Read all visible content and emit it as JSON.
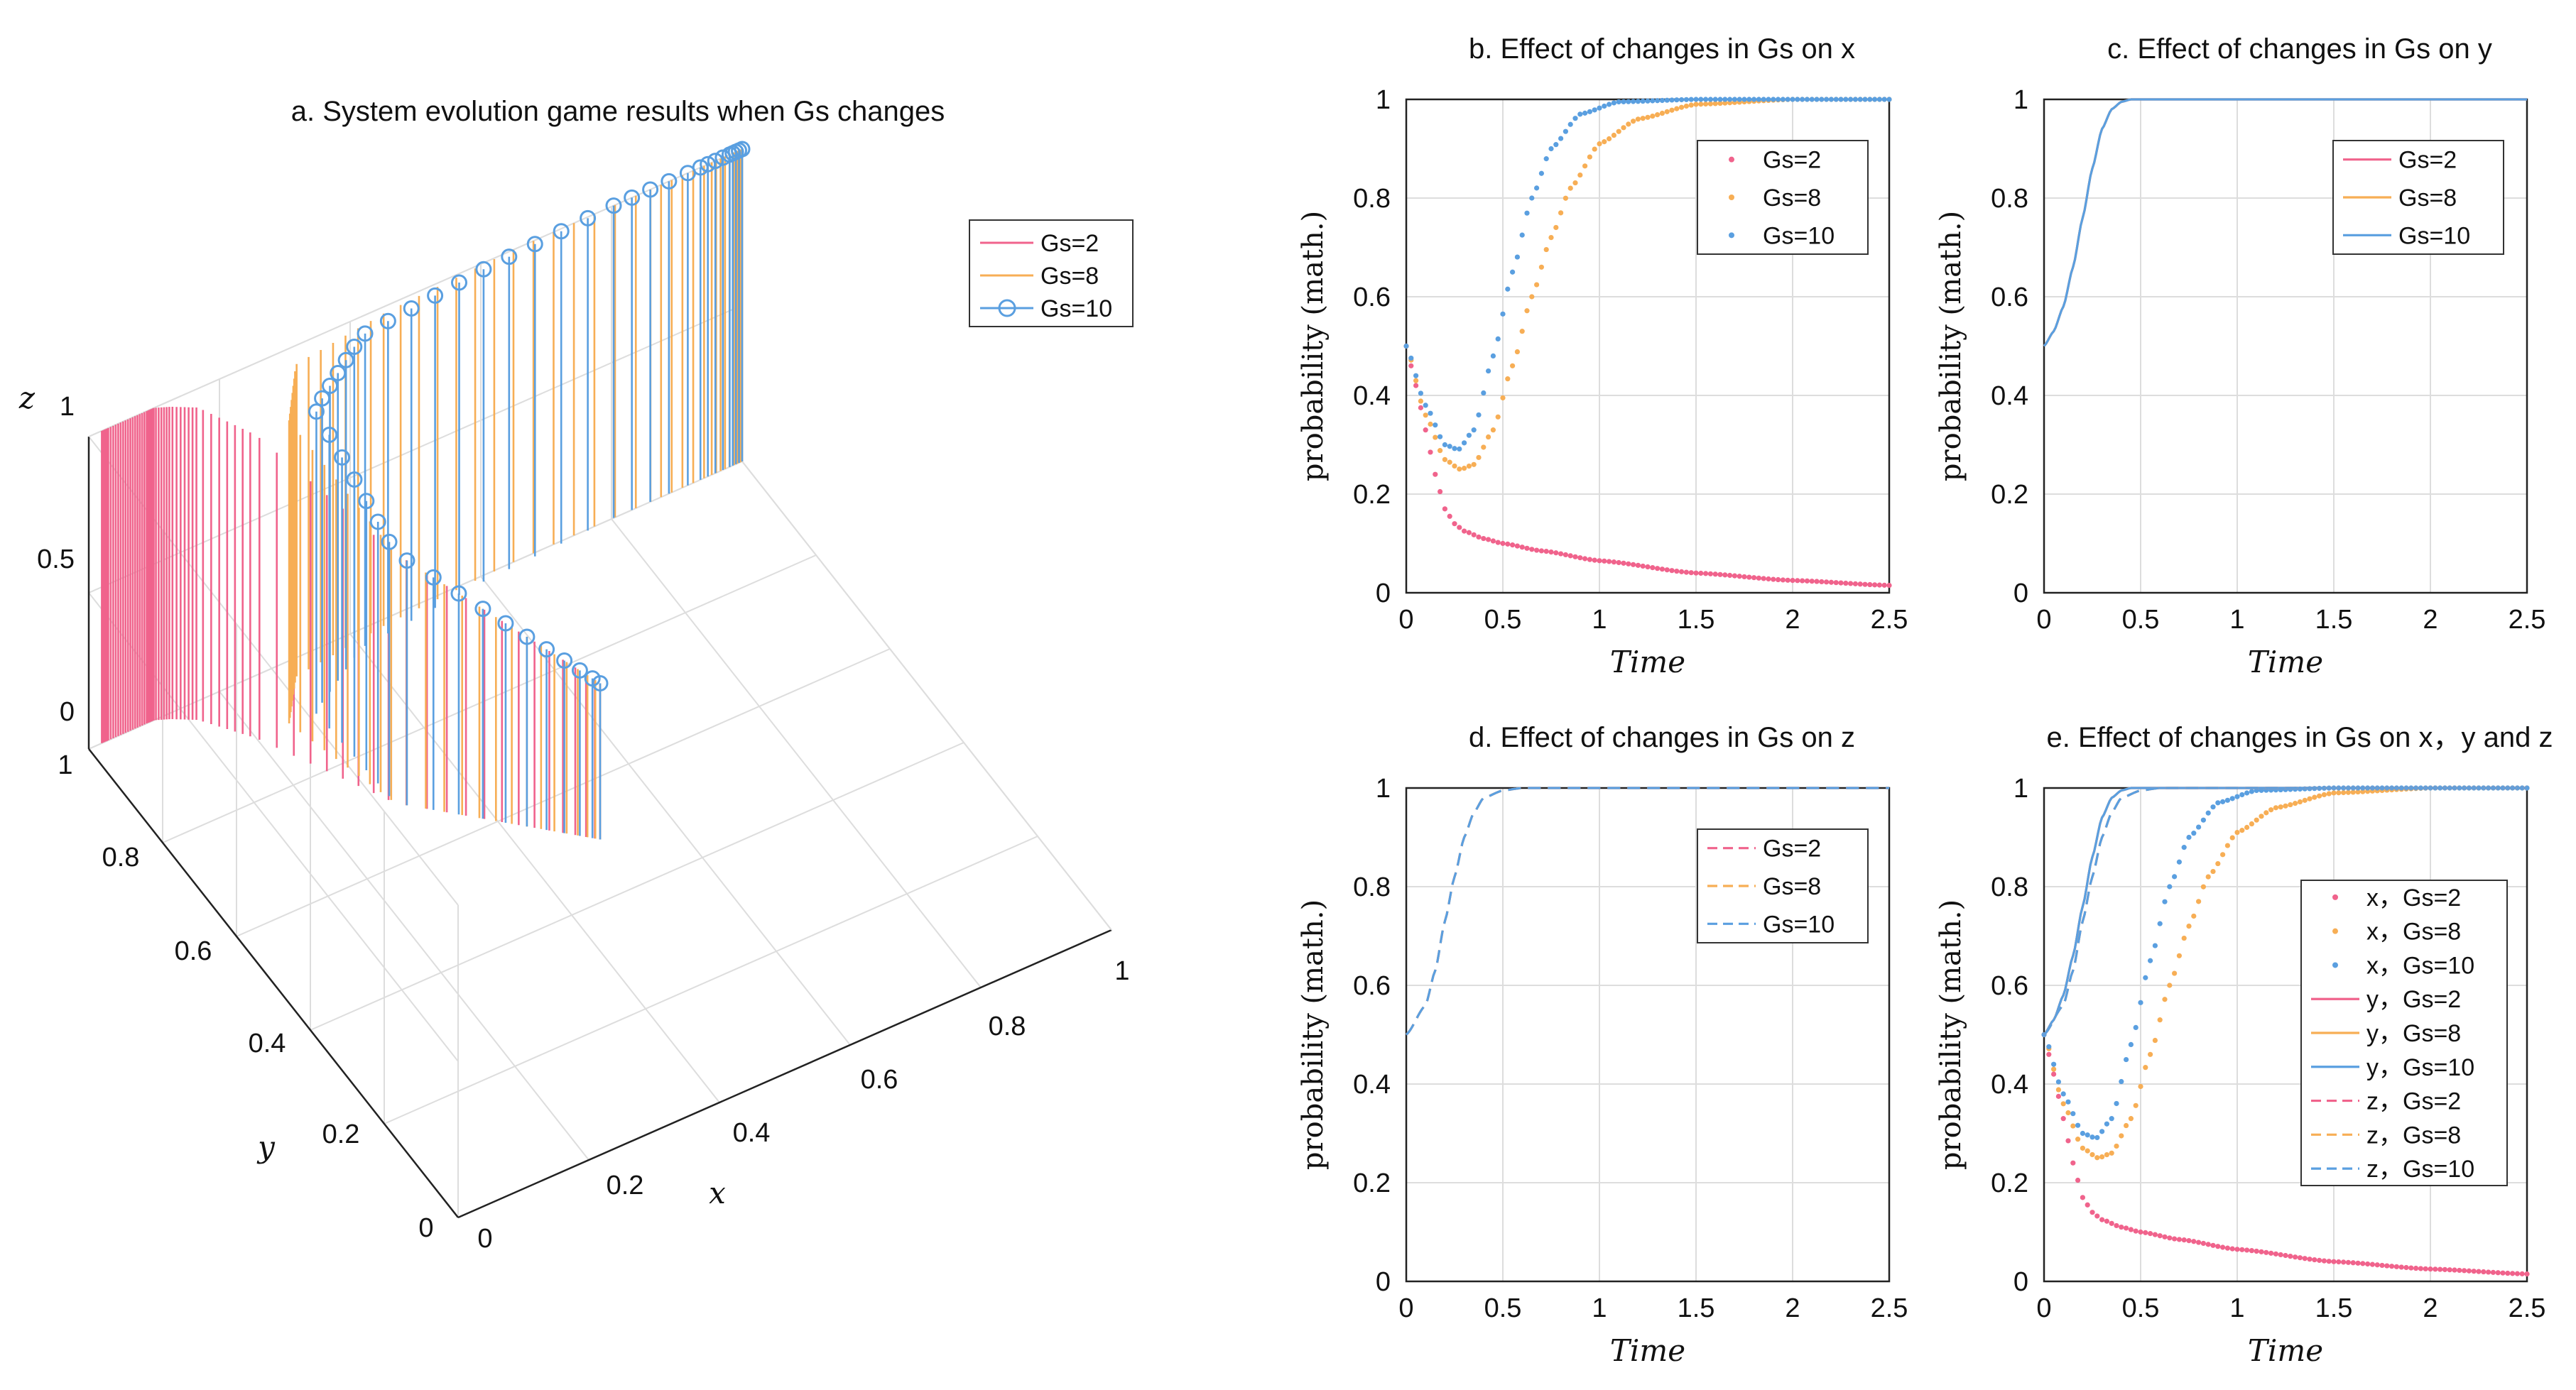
{
  "colors": {
    "gs2": "#f0638c",
    "gs8": "#f7ae55",
    "gs10": "#5a9fe0",
    "grid": "#dddddd",
    "axis": "#222222"
  },
  "chart_data": [
    {
      "id": "a",
      "type": "scatter",
      "title": "a. System evolution game results when Gs changes",
      "xlabel": "x",
      "ylabel": "y",
      "zlabel": "z",
      "xlim": [
        0,
        1
      ],
      "ylim": [
        0,
        1
      ],
      "zlim": [
        0,
        1
      ],
      "x_ticks": [
        "0",
        "0.2",
        "0.4",
        "0.6",
        "0.8",
        "1"
      ],
      "y_ticks": [
        "0",
        "0.2",
        "0.4",
        "0.6",
        "0.8",
        "1"
      ],
      "z_ticks": [
        "0",
        "0.5",
        "1"
      ],
      "legend": [
        "Gs=2",
        "Gs=8",
        "Gs=10"
      ],
      "legend_position": "top-right",
      "series": [
        {
          "name": "Gs=2",
          "style": "stem-line",
          "points": [
            [
              0.5,
              0.5,
              0.5
            ],
            [
              0.3,
              0.7,
              0.8
            ],
            [
              0.2,
              0.9,
              0.97
            ],
            [
              0.15,
              0.97,
              1
            ],
            [
              0.12,
              0.99,
              1
            ],
            [
              0.1,
              1,
              1
            ],
            [
              0.09,
              1,
              1
            ],
            [
              0.07,
              1,
              1
            ],
            [
              0.05,
              1,
              1
            ],
            [
              0.03,
              1,
              1
            ],
            [
              0.02,
              1,
              1
            ]
          ]
        },
        {
          "name": "Gs=8",
          "style": "stem-line",
          "points": [
            [
              0.5,
              0.5,
              0.5
            ],
            [
              0.3,
              0.7,
              0.8
            ],
            [
              0.25,
              0.9,
              0.97
            ],
            [
              0.3,
              0.97,
              1
            ],
            [
              0.45,
              0.99,
              1
            ],
            [
              0.65,
              1,
              1
            ],
            [
              0.85,
              1,
              1
            ],
            [
              0.95,
              1,
              1
            ],
            [
              0.99,
              1,
              1
            ],
            [
              1,
              1,
              1
            ]
          ]
        },
        {
          "name": "Gs=10",
          "style": "stem-circle",
          "points": [
            [
              0.5,
              0.5,
              0.5
            ],
            [
              0.3,
              0.7,
              0.8
            ],
            [
              0.29,
              0.9,
              0.97
            ],
            [
              0.4,
              0.97,
              1
            ],
            [
              0.6,
              0.99,
              1
            ],
            [
              0.8,
              1,
              1
            ],
            [
              0.93,
              1,
              1
            ],
            [
              0.98,
              1,
              1
            ],
            [
              1,
              1,
              1
            ]
          ]
        }
      ]
    },
    {
      "id": "b",
      "type": "scatter",
      "title": "b. Effect of changes in Gs on x",
      "xlabel": "Time",
      "ylabel": "probability (math.)",
      "xlim": [
        0,
        2.5
      ],
      "ylim": [
        0,
        1
      ],
      "x_ticks": [
        "0",
        "0.5",
        "1",
        "1.5",
        "2",
        "2.5"
      ],
      "y_ticks": [
        "0",
        "0.2",
        "0.4",
        "0.6",
        "0.8",
        "1"
      ],
      "legend_position": "top-right",
      "series": [
        {
          "name": "Gs=2",
          "style": "dots"
        },
        {
          "name": "Gs=8",
          "style": "dots"
        },
        {
          "name": "Gs=10",
          "style": "dots"
        }
      ]
    },
    {
      "id": "c",
      "type": "line",
      "title": "c. Effect of changes in Gs on y",
      "xlabel": "Time",
      "ylabel": "probability (math.)",
      "xlim": [
        0,
        2.5
      ],
      "ylim": [
        0,
        1
      ],
      "x_ticks": [
        "0",
        "0.5",
        "1",
        "1.5",
        "2",
        "2.5"
      ],
      "y_ticks": [
        "0",
        "0.2",
        "0.4",
        "0.6",
        "0.8",
        "1"
      ],
      "legend_position": "top-right",
      "series": [
        {
          "name": "Gs=2",
          "style": "solid"
        },
        {
          "name": "Gs=8",
          "style": "solid"
        },
        {
          "name": "Gs=10",
          "style": "solid"
        }
      ]
    },
    {
      "id": "d",
      "type": "line",
      "title": "d. Effect of changes in Gs on z",
      "xlabel": "Time",
      "ylabel": "probability (math.)",
      "xlim": [
        0,
        2.5
      ],
      "ylim": [
        0,
        1
      ],
      "x_ticks": [
        "0",
        "0.5",
        "1",
        "1.5",
        "2",
        "2.5"
      ],
      "y_ticks": [
        "0",
        "0.2",
        "0.4",
        "0.6",
        "0.8",
        "1"
      ],
      "legend_position": "top-right",
      "series": [
        {
          "name": "Gs=2",
          "style": "dashed"
        },
        {
          "name": "Gs=8",
          "style": "dashed"
        },
        {
          "name": "Gs=10",
          "style": "dashed"
        }
      ]
    },
    {
      "id": "e",
      "type": "line",
      "title": "e. Effect of changes in Gs on x，y and z",
      "xlabel": "Time",
      "ylabel": "probability (math.)",
      "xlim": [
        0,
        2.5
      ],
      "ylim": [
        0,
        1
      ],
      "x_ticks": [
        "0",
        "0.5",
        "1",
        "1.5",
        "2",
        "2.5"
      ],
      "y_ticks": [
        "0",
        "0.2",
        "0.4",
        "0.6",
        "0.8",
        "1"
      ],
      "legend_position": "right",
      "series": [
        {
          "name": "x，Gs=2",
          "style": "dots"
        },
        {
          "name": "x，Gs=8",
          "style": "dots"
        },
        {
          "name": "x，Gs=10",
          "style": "dots"
        },
        {
          "name": "y，Gs=2",
          "style": "solid"
        },
        {
          "name": "y，Gs=8",
          "style": "solid"
        },
        {
          "name": "y，Gs=10",
          "style": "solid"
        },
        {
          "name": "z，Gs=2",
          "style": "dashed"
        },
        {
          "name": "z，Gs=8",
          "style": "dashed"
        },
        {
          "name": "z，Gs=10",
          "style": "dashed"
        }
      ]
    }
  ],
  "curves": {
    "x": {
      "Gs=2": [
        [
          0,
          0.5
        ],
        [
          0.05,
          0.42
        ],
        [
          0.1,
          0.33
        ],
        [
          0.15,
          0.24
        ],
        [
          0.2,
          0.17
        ],
        [
          0.25,
          0.14
        ],
        [
          0.3,
          0.125
        ],
        [
          0.4,
          0.11
        ],
        [
          0.5,
          0.1
        ],
        [
          0.7,
          0.085
        ],
        [
          1,
          0.065
        ],
        [
          1.5,
          0.04
        ],
        [
          2,
          0.025
        ],
        [
          2.5,
          0.015
        ]
      ],
      "Gs=8": [
        [
          0,
          0.5
        ],
        [
          0.1,
          0.36
        ],
        [
          0.2,
          0.27
        ],
        [
          0.28,
          0.25
        ],
        [
          0.35,
          0.26
        ],
        [
          0.45,
          0.33
        ],
        [
          0.55,
          0.46
        ],
        [
          0.65,
          0.6
        ],
        [
          0.75,
          0.72
        ],
        [
          0.85,
          0.82
        ],
        [
          1,
          0.91
        ],
        [
          1.2,
          0.96
        ],
        [
          1.5,
          0.99
        ],
        [
          2,
          1
        ],
        [
          2.5,
          1
        ]
      ],
      "Gs=10": [
        [
          0,
          0.5
        ],
        [
          0.1,
          0.38
        ],
        [
          0.2,
          0.3
        ],
        [
          0.27,
          0.29
        ],
        [
          0.35,
          0.33
        ],
        [
          0.45,
          0.48
        ],
        [
          0.55,
          0.65
        ],
        [
          0.65,
          0.8
        ],
        [
          0.75,
          0.9
        ],
        [
          0.9,
          0.97
        ],
        [
          1.1,
          0.995
        ],
        [
          1.5,
          1
        ],
        [
          2,
          1
        ],
        [
          2.5,
          1
        ]
      ]
    },
    "y": {
      "Gs=2": [
        [
          0,
          0.5
        ],
        [
          0.05,
          0.53
        ],
        [
          0.1,
          0.58
        ],
        [
          0.15,
          0.66
        ],
        [
          0.2,
          0.76
        ],
        [
          0.25,
          0.86
        ],
        [
          0.3,
          0.94
        ],
        [
          0.35,
          0.98
        ],
        [
          0.4,
          0.995
        ],
        [
          0.45,
          1
        ],
        [
          2.5,
          1
        ]
      ],
      "Gs=8": [
        [
          0,
          0.5
        ],
        [
          0.05,
          0.53
        ],
        [
          0.1,
          0.58
        ],
        [
          0.15,
          0.66
        ],
        [
          0.2,
          0.76
        ],
        [
          0.25,
          0.86
        ],
        [
          0.3,
          0.94
        ],
        [
          0.35,
          0.98
        ],
        [
          0.4,
          0.995
        ],
        [
          0.45,
          1
        ],
        [
          2.5,
          1
        ]
      ],
      "Gs=10": [
        [
          0,
          0.5
        ],
        [
          0.05,
          0.53
        ],
        [
          0.1,
          0.58
        ],
        [
          0.15,
          0.66
        ],
        [
          0.2,
          0.76
        ],
        [
          0.25,
          0.86
        ],
        [
          0.3,
          0.94
        ],
        [
          0.35,
          0.98
        ],
        [
          0.4,
          0.995
        ],
        [
          0.45,
          1
        ],
        [
          2.5,
          1
        ]
      ]
    },
    "z": {
      "Gs=2": [
        [
          0,
          0.5
        ],
        [
          0.1,
          0.56
        ],
        [
          0.15,
          0.63
        ],
        [
          0.2,
          0.73
        ],
        [
          0.25,
          0.82
        ],
        [
          0.3,
          0.9
        ],
        [
          0.35,
          0.95
        ],
        [
          0.4,
          0.98
        ],
        [
          0.5,
          0.995
        ],
        [
          0.6,
          1
        ],
        [
          2.5,
          1
        ]
      ],
      "Gs=8": [
        [
          0,
          0.5
        ],
        [
          0.1,
          0.56
        ],
        [
          0.15,
          0.63
        ],
        [
          0.2,
          0.73
        ],
        [
          0.25,
          0.82
        ],
        [
          0.3,
          0.9
        ],
        [
          0.35,
          0.95
        ],
        [
          0.4,
          0.98
        ],
        [
          0.5,
          0.995
        ],
        [
          0.6,
          1
        ],
        [
          2.5,
          1
        ]
      ],
      "Gs=10": [
        [
          0,
          0.5
        ],
        [
          0.1,
          0.56
        ],
        [
          0.15,
          0.63
        ],
        [
          0.2,
          0.73
        ],
        [
          0.25,
          0.82
        ],
        [
          0.3,
          0.9
        ],
        [
          0.35,
          0.95
        ],
        [
          0.4,
          0.98
        ],
        [
          0.5,
          0.995
        ],
        [
          0.6,
          1
        ],
        [
          2.5,
          1
        ]
      ]
    }
  }
}
